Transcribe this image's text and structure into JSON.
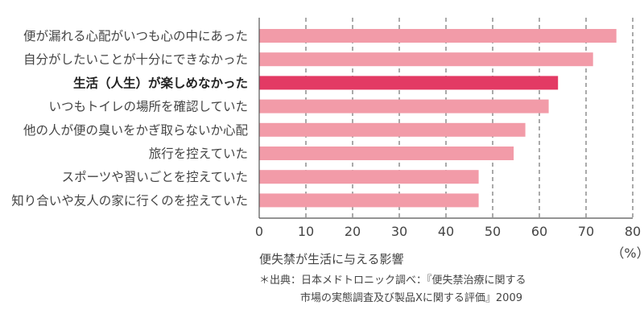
{
  "chart_data": {
    "type": "bar",
    "orientation": "horizontal",
    "categories": [
      "便が漏れる心配がいつも心の中にあった",
      "自分がしたいことが十分にできなかった",
      "生活（人生）が楽しめなかった",
      "いつもトイレの場所を確認していた",
      "他の人が便の臭いをかぎ取らないか心配",
      "旅行を控えていた",
      "スポーツや習いごとを控えていた",
      "知り合いや友人の家に行くのを控えていた"
    ],
    "values": [
      76.5,
      71.5,
      64,
      62,
      57,
      54.5,
      47,
      47
    ],
    "highlight_index": 2,
    "xlim": [
      0,
      80
    ],
    "xticks": [
      "0",
      "10",
      "20",
      "30",
      "40",
      "50",
      "60",
      "70",
      "80"
    ],
    "unit": "（%）",
    "title": "便失禁が生活に与える影響",
    "source": [
      "＊出典：日本メドトロニック調べ：『便失禁治療に関する",
      "市場の実態調査及び製品Xに関する評価』2009"
    ],
    "grid": "dashed-vertical",
    "colors": {
      "bar": "#f29ba8",
      "highlight": "#e33a64",
      "grid": "#555555",
      "axis": "#555555"
    }
  }
}
